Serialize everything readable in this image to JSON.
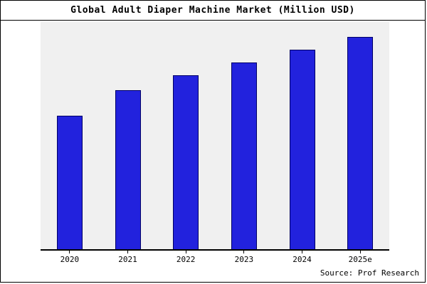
{
  "chart_data": {
    "type": "bar",
    "title": "Global Adult Diaper Machine Market (Million USD)",
    "categories": [
      "2020",
      "2021",
      "2022",
      "2023",
      "2024",
      "2025e"
    ],
    "values": [
      63,
      75,
      82,
      88,
      94,
      100
    ],
    "xlabel": "",
    "ylabel": "",
    "ylim": [
      0,
      107
    ],
    "grid": false,
    "legend": "none",
    "bar_color": "#2222dd",
    "bar_edge_color": "#000066",
    "plot_background": "#f0f0f0",
    "source": "Source: Prof Research"
  }
}
